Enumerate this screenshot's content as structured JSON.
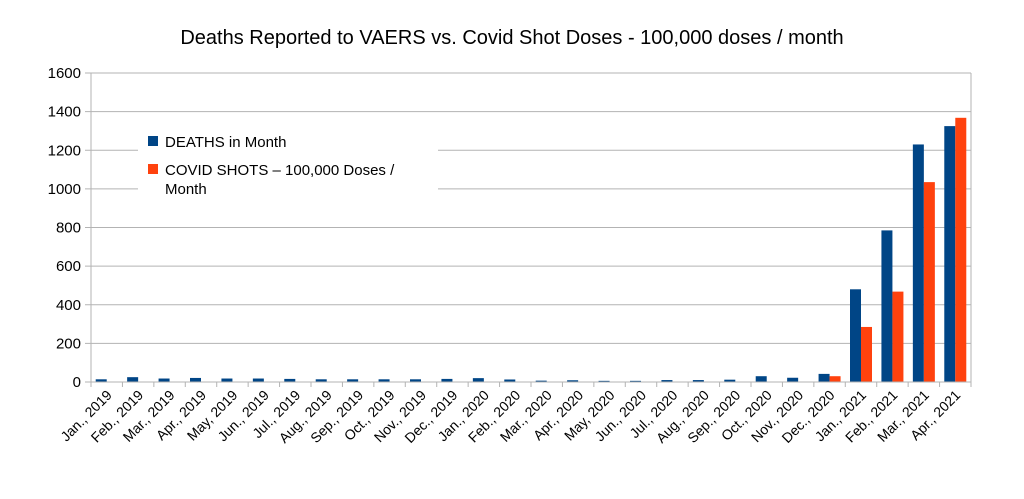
{
  "chart_data": {
    "type": "bar",
    "title": "Deaths Reported to VAERS vs. Covid Shot Doses - 100,000 doses / month",
    "xlabel": "",
    "ylabel": "",
    "ylim": [
      0,
      1600
    ],
    "yticks": [
      "0",
      "200",
      "400",
      "600",
      "800",
      "1000",
      "1200",
      "1400",
      "1600"
    ],
    "grid": true,
    "legend_position": "top-left",
    "categories": [
      "Jan., 2019",
      "Feb., 2019",
      "Mar., 2019",
      "Apr., 2019",
      "May, 2019",
      "Jun., 2019",
      "Jul., 2019",
      "Aug., 2019",
      "Sep., 2019",
      "Oct., 2019",
      "Nov., 2019",
      "Dec., 2019",
      "Jan., 2020",
      "Feb., 2020",
      "Mar., 2020",
      "Apr., 2020",
      "May, 2020",
      "Jun., 2020",
      "Jul., 2020",
      "Aug., 2020",
      "Sep., 2020",
      "Oct., 2020",
      "Nov., 2020",
      "Dec., 2020",
      "Jan., 2021",
      "Feb., 2021",
      "Mar., 2021",
      "Apr., 2021"
    ],
    "series": [
      {
        "name": "DEATHS in Month",
        "color": "#004586",
        "values": [
          14,
          25,
          18,
          21,
          18,
          18,
          16,
          14,
          14,
          14,
          14,
          16,
          20,
          13,
          7,
          9,
          6,
          6,
          10,
          10,
          12,
          30,
          22,
          42,
          480,
          785,
          1230,
          1325
        ]
      },
      {
        "name": "COVID SHOTS – 100,000 Doses / Month",
        "legend_lines": [
          "COVID SHOTS – 100,000 Doses /",
          "Month"
        ],
        "color": "#ff420e",
        "values": [
          0,
          0,
          0,
          0,
          0,
          0,
          0,
          0,
          0,
          0,
          0,
          0,
          0,
          0,
          0,
          0,
          0,
          0,
          0,
          0,
          0,
          0,
          0,
          30,
          285,
          468,
          1035,
          1368
        ]
      }
    ]
  }
}
